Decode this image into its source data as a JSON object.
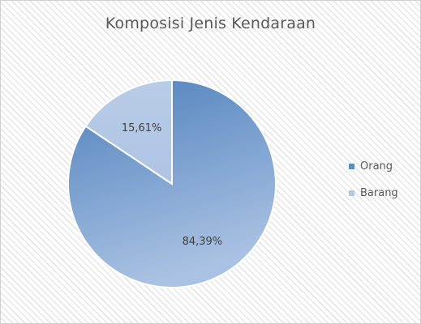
{
  "chart_data": {
    "type": "pie",
    "title": "Komposisi Jenis Kendaraan",
    "categories": [
      "Orang",
      "Barang"
    ],
    "values": [
      84.39,
      15.61
    ],
    "data_labels": [
      "84,39%",
      "15,61%"
    ],
    "colors": [
      "#5b8fc4",
      "#b3c8e6"
    ],
    "legend_position": "right"
  }
}
